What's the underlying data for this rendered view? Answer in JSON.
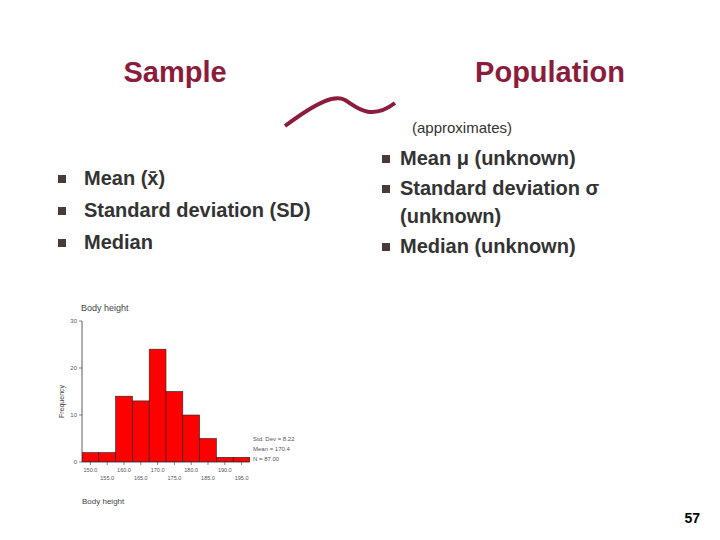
{
  "slide": {
    "left_heading": "Sample",
    "right_heading": "Population",
    "relation": "(approximates)",
    "sample_items": [
      "Mean (x̄)",
      "Standard deviation (SD)",
      "Median"
    ],
    "population_items": [
      "Mean μ (unknown)",
      "Standard deviation σ (unknown)",
      "Median (unknown)"
    ],
    "page_number": "57"
  },
  "chart_data": {
    "type": "histogram",
    "title": "Body height",
    "x_label": "Body height",
    "y_label": "Frequency",
    "bins": [
      147.5,
      152.5,
      157.5,
      162.5,
      167.5,
      172.5,
      177.5,
      182.5,
      187.5,
      192.5,
      197.5
    ],
    "counts": [
      2,
      2,
      14,
      13,
      24,
      15,
      10,
      5,
      1,
      1
    ],
    "color": "#ff0000",
    "xlim": [
      147.5,
      197.5
    ],
    "ylim": [
      0,
      30
    ],
    "xticks": [
      {
        "value": 150,
        "label": "150.0"
      },
      {
        "value": 155,
        "label": "155.0"
      },
      {
        "value": 160,
        "label": "160.0"
      },
      {
        "value": 165,
        "label": "165.0"
      },
      {
        "value": 170,
        "label": "170.0"
      },
      {
        "value": 175,
        "label": "175.0"
      },
      {
        "value": 180,
        "label": "180.0"
      },
      {
        "value": 185,
        "label": "185.0"
      },
      {
        "value": 190,
        "label": "190.0"
      },
      {
        "value": 195,
        "label": "195.0"
      }
    ],
    "yticks": [
      0,
      10,
      20,
      30
    ],
    "annotations": [
      "Std. Dev = 8.22",
      "Mean = 170.4",
      "N = 87.00"
    ]
  }
}
